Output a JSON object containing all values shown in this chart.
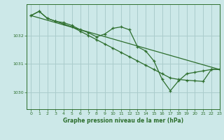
{
  "bg_color": "#cce8e8",
  "grid_color": "#aacccc",
  "line_color": "#2d6e2d",
  "title": "Graphe pression niveau de la mer (hPa)",
  "xlim": [
    -0.5,
    23
  ],
  "ylim": [
    1029.4,
    1033.1
  ],
  "yticks": [
    1030,
    1031,
    1032
  ],
  "xtick_labels": [
    "0",
    "1",
    "2",
    "3",
    "4",
    "5",
    "6",
    "7",
    "8",
    "9",
    "10",
    "11",
    "12",
    "13",
    "14",
    "15",
    "16",
    "17",
    "18",
    "19",
    "20",
    "21",
    "22",
    "23"
  ],
  "series1": {
    "x": [
      0,
      1,
      2,
      3,
      4,
      5,
      6,
      7,
      8,
      9,
      10,
      11,
      12,
      13,
      14,
      15,
      16,
      17,
      18,
      19,
      20,
      21,
      22,
      23
    ],
    "y": [
      1032.7,
      1032.85,
      1032.6,
      1032.5,
      1032.45,
      1032.35,
      1032.2,
      1032.1,
      1031.95,
      1032.05,
      1032.25,
      1032.3,
      1032.2,
      1031.6,
      1031.45,
      1031.1,
      1030.45,
      1030.05,
      1030.4,
      1030.65,
      1030.7,
      1030.75,
      1030.8,
      1030.8
    ]
  },
  "series2": {
    "x": [
      0,
      1,
      2,
      3,
      4,
      5,
      6,
      7,
      8,
      9,
      10,
      11,
      12,
      13,
      14,
      15,
      16,
      17,
      18,
      19,
      20,
      21,
      22,
      23
    ],
    "y": [
      1032.7,
      1032.85,
      1032.6,
      1032.5,
      1032.4,
      1032.3,
      1032.15,
      1032.0,
      1031.85,
      1031.7,
      1031.55,
      1031.4,
      1031.25,
      1031.1,
      1030.95,
      1030.8,
      1030.65,
      1030.5,
      1030.45,
      1030.42,
      1030.4,
      1030.38,
      1030.8,
      1030.8
    ]
  },
  "series3": {
    "x": [
      0,
      23
    ],
    "y": [
      1032.7,
      1030.8
    ]
  },
  "series4": {
    "x": [
      1,
      4
    ],
    "y": [
      1032.85,
      1032.45
    ]
  }
}
